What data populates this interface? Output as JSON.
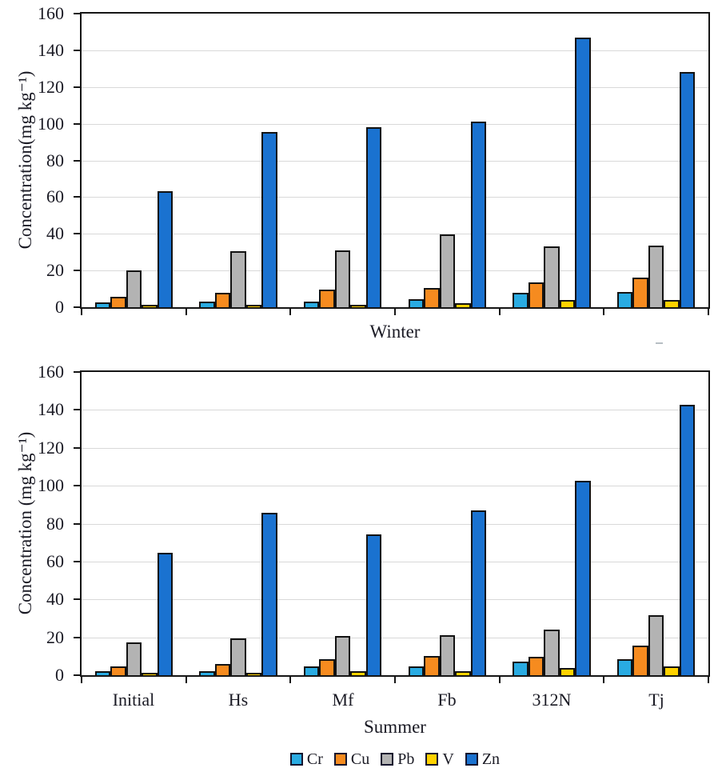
{
  "figure": {
    "background": "#ffffff",
    "text_color": "#1a1a24"
  },
  "chart_data": [
    {
      "type": "bar",
      "panel": "top",
      "x_axis_title": "Winter",
      "y_axis_title": "Concentration(mg kg⁻¹)",
      "ylim": [
        0,
        160
      ],
      "ytick_step": 20,
      "grid": true,
      "show_category_labels": false,
      "categories": [
        "Initial",
        "Hs",
        "Mf",
        "Fb",
        "312N",
        "Tj"
      ],
      "series": [
        {
          "name": "Cr",
          "color": "#29abe2",
          "values": [
            2.5,
            3,
            3,
            4.5,
            8,
            8.5
          ]
        },
        {
          "name": "Cu",
          "color": "#f68b1f",
          "values": [
            5.5,
            8,
            9.5,
            10.5,
            13.5,
            16
          ]
        },
        {
          "name": "Pb",
          "color": "#b3b3b3",
          "values": [
            20,
            30.5,
            31,
            39.5,
            33,
            33.5
          ]
        },
        {
          "name": "V",
          "color": "#ffd200",
          "values": [
            1.5,
            1.5,
            1.5,
            2,
            4,
            4
          ]
        },
        {
          "name": "Zn",
          "color": "#1a72d0",
          "values": [
            63,
            95.5,
            98,
            101,
            147,
            128
          ]
        }
      ]
    },
    {
      "type": "bar",
      "panel": "bottom",
      "x_axis_title": "Summer",
      "y_axis_title": "Concentration (mg kg⁻¹)",
      "ylim": [
        0,
        160
      ],
      "ytick_step": 20,
      "grid": true,
      "show_category_labels": true,
      "categories": [
        "Initial",
        "Hs",
        "Mf",
        "Fb",
        "312N",
        "Tj"
      ],
      "series": [
        {
          "name": "Cr",
          "color": "#29abe2",
          "values": [
            2,
            2,
            4.5,
            4.5,
            7,
            8.5
          ]
        },
        {
          "name": "Cu",
          "color": "#f68b1f",
          "values": [
            4.5,
            6,
            8.5,
            10,
            9.5,
            15.5
          ]
        },
        {
          "name": "Pb",
          "color": "#b3b3b3",
          "values": [
            17.5,
            19.5,
            20.5,
            21,
            24,
            31.5
          ]
        },
        {
          "name": "V",
          "color": "#ffd200",
          "values": [
            1,
            1,
            2,
            2,
            4,
            4.5
          ]
        },
        {
          "name": "Zn",
          "color": "#1a72d0",
          "values": [
            64.5,
            85.5,
            74.5,
            87,
            102.5,
            142.5
          ]
        }
      ]
    }
  ],
  "legend": {
    "items": [
      {
        "label": "Cr",
        "color": "#29abe2"
      },
      {
        "label": "Cu",
        "color": "#f68b1f"
      },
      {
        "label": "Pb",
        "color": "#b3b3b3"
      },
      {
        "label": "V",
        "color": "#ffd200"
      },
      {
        "label": "Zn",
        "color": "#1a72d0"
      }
    ]
  }
}
